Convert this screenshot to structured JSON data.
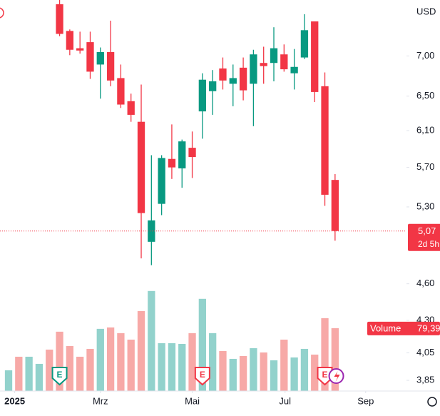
{
  "chart_data": {
    "type": "candlestick",
    "currency": "USD",
    "log_scale": true,
    "ylim": [
      3.775,
      7.76
    ],
    "yticks": [
      {
        "value": 7.0,
        "label": "7,00"
      },
      {
        "value": 6.5,
        "label": "6,50"
      },
      {
        "value": 6.1,
        "label": "6,10"
      },
      {
        "value": 5.7,
        "label": "5,70"
      },
      {
        "value": 5.3,
        "label": "5,30"
      },
      {
        "value": 4.6,
        "label": "4,60"
      },
      {
        "value": 4.3,
        "label": "4,30"
      },
      {
        "value": 4.05,
        "label": "4,05"
      },
      {
        "value": 3.85,
        "label": "3,85"
      }
    ],
    "xlim": [
      -0.84,
      39
    ],
    "xticks": [
      {
        "value": 0.6,
        "label": "2025"
      },
      {
        "value": 9,
        "label": "Mrz"
      },
      {
        "value": 18,
        "label": "Mai"
      },
      {
        "value": 27.1,
        "label": "Jul"
      },
      {
        "value": 35,
        "label": "Sep"
      }
    ],
    "up_color": "#089981",
    "down_color": "#f23645",
    "open": [
      null,
      null,
      null,
      null,
      null,
      7.7,
      7.33,
      7.1,
      7.18,
      6.89,
      7.05,
      6.72,
      6.44,
      6.2,
      4.97,
      5.33,
      5.79,
      5.69,
      5.91,
      6.32,
      6.56,
      6.84,
      6.65,
      6.85,
      6.65,
      6.91,
      6.91,
      7.02,
      6.78,
      6.98,
      7.46,
      6.62,
      5.57
    ],
    "high": [
      null,
      null,
      null,
      null,
      null,
      7.76,
      7.35,
      7.32,
      7.32,
      7.11,
      7.47,
      6.89,
      6.53,
      6.64,
      5.83,
      5.83,
      6.17,
      6.0,
      6.09,
      6.78,
      6.82,
      6.98,
      6.89,
      6.98,
      7.08,
      7.12,
      7.38,
      7.15,
      7.09,
      7.56,
      7.46,
      6.79,
      5.63
    ],
    "low": [
      null,
      null,
      null,
      null,
      null,
      7.26,
      7.01,
      7.03,
      6.71,
      6.47,
      6.62,
      6.36,
      6.2,
      4.82,
      4.76,
      5.22,
      5.58,
      5.49,
      5.59,
      6.01,
      6.28,
      6.58,
      6.38,
      6.45,
      6.15,
      6.65,
      6.68,
      6.8,
      6.58,
      6.96,
      6.43,
      5.31,
      4.98
    ],
    "close": [
      null,
      null,
      null,
      null,
      null,
      7.29,
      7.08,
      7.07,
      6.8,
      7.05,
      6.69,
      6.4,
      6.28,
      5.24,
      5.17,
      5.8,
      5.7,
      5.98,
      5.81,
      6.7,
      6.68,
      6.69,
      6.72,
      6.57,
      7.02,
      6.87,
      7.1,
      6.83,
      6.86,
      7.34,
      6.55,
      5.42,
      5.07
    ],
    "volume": {
      "name": "Volume",
      "ylim": [
        0,
        200
      ],
      "values": [
        26.2,
        43.3,
        43.3,
        34.3,
        52.3,
        74.9,
        56.8,
        43.3,
        53.2,
        78.5,
        80.3,
        73.1,
        64.9,
        101,
        126.3,
        60.4,
        60.4,
        59.5,
        73.1,
        116.4,
        73.1,
        50.5,
        40.6,
        44.2,
        54.1,
        48.7,
        38.8,
        64.9,
        42.4,
        53.2,
        46,
        92,
        79.39
      ],
      "colors": [
        "#92d2cc",
        "#f7a9a7",
        "#92d2cc",
        "#92d2cc",
        "#f7a9a7",
        "#f7a9a7",
        "#f7a9a7",
        "#f7a9a7",
        "#f7a9a7",
        "#92d2cc",
        "#f7a9a7",
        "#f7a9a7",
        "#f7a9a7",
        "#f7a9a7",
        "#92d2cc",
        "#92d2cc",
        "#92d2cc",
        "#92d2cc",
        "#f7a9a7",
        "#92d2cc",
        "#92d2cc",
        "#f7a9a7",
        "#92d2cc",
        "#f7a9a7",
        "#92d2cc",
        "#f7a9a7",
        "#92d2cc",
        "#f7a9a7",
        "#92d2cc",
        "#92d2cc",
        "#f7a9a7",
        "#f7a9a7",
        "#f7a9a7"
      ],
      "last_label": "79,39"
    },
    "last_price": {
      "value": 5.07,
      "label": "5,07"
    },
    "countdown": "2d 5h",
    "events": [
      {
        "index": 5,
        "label": "E",
        "color": "#089981"
      },
      {
        "index": 19,
        "label": "E",
        "color": "#f23645"
      },
      {
        "index": 31,
        "label": "E",
        "color": "#f23645"
      }
    ]
  }
}
